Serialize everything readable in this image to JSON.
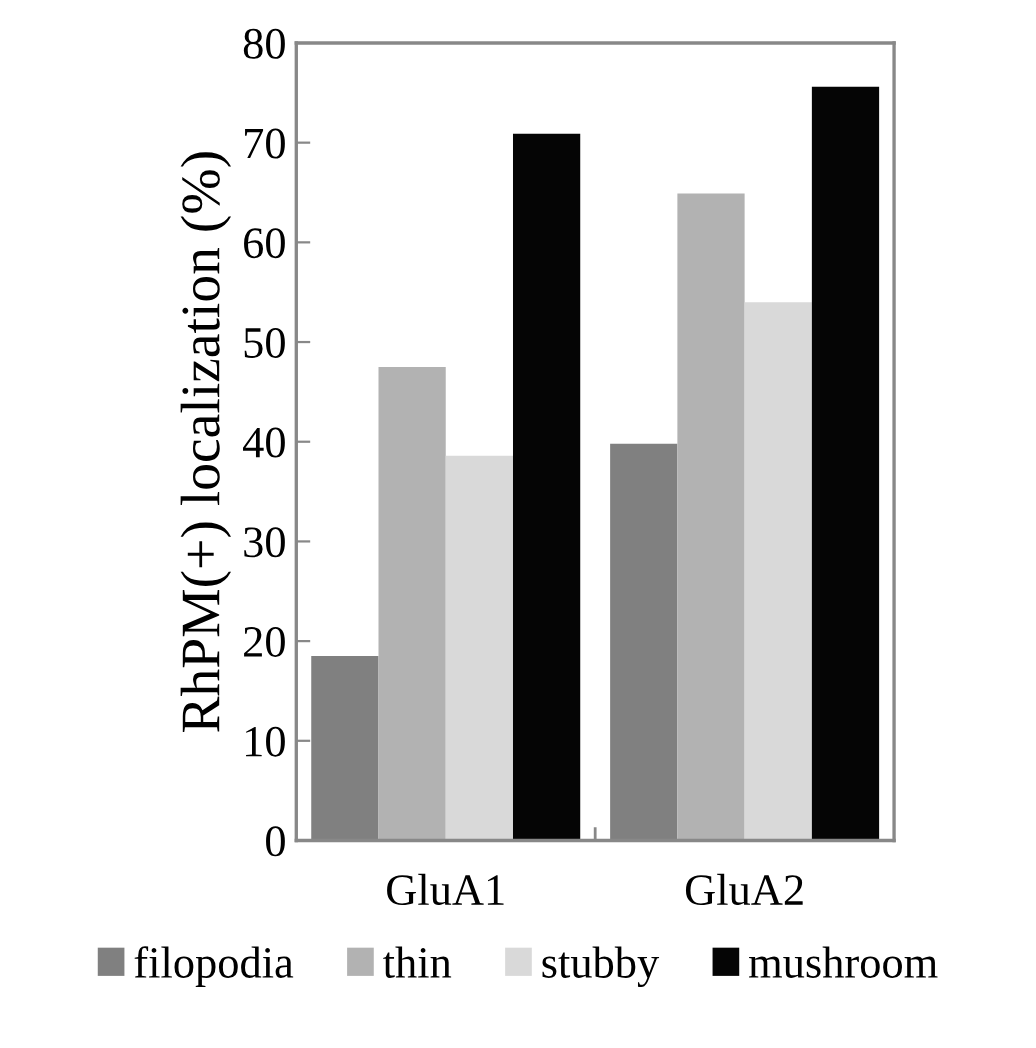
{
  "chart_data": {
    "type": "bar",
    "ylabel": "RhPM(+) localization (%)",
    "categories": [
      "GluA1",
      "GluA2"
    ],
    "series": [
      {
        "name": "filopodia",
        "color": "#808080",
        "values": [
          18.5,
          39.8
        ]
      },
      {
        "name": "thin",
        "color": "#b2b2b2",
        "values": [
          47.5,
          64.9
        ]
      },
      {
        "name": "stubby",
        "color": "#d9d9d9",
        "values": [
          38.6,
          54.0
        ]
      },
      {
        "name": "mushroom",
        "color": "#050505",
        "values": [
          70.9,
          75.6
        ]
      }
    ],
    "ylim": [
      0,
      80
    ],
    "yticks": [
      0,
      10,
      20,
      30,
      40,
      50,
      60,
      70,
      80
    ],
    "grid": false,
    "legend": "bottom"
  }
}
